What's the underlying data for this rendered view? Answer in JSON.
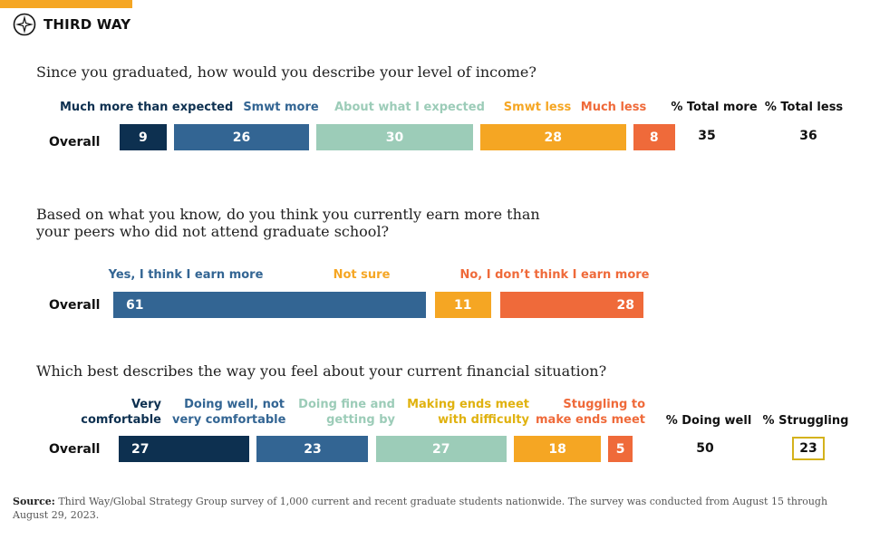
{
  "brand": {
    "name": "THIRD WAY",
    "icon": "compass-icon",
    "accent_color": "#f5a623"
  },
  "chart_data": [
    {
      "type": "bar",
      "subtype": "stacked-horizontal",
      "title": "Since you graduated, how would you describe your level of income?",
      "categories": [
        "Overall"
      ],
      "series": [
        {
          "name": "Much more than expected",
          "values": [
            9
          ],
          "color": "#0d3050"
        },
        {
          "name": "Smwt more",
          "values": [
            26
          ],
          "color": "#336593"
        },
        {
          "name": "About what I expected",
          "values": [
            30
          ],
          "color": "#9cccb8"
        },
        {
          "name": "Smwt less",
          "values": [
            28
          ],
          "color": "#f5a623"
        },
        {
          "name": "Much less",
          "values": [
            8
          ],
          "color": "#ef6a3a"
        }
      ],
      "totals": [
        {
          "label": "% Total more",
          "value": 35
        },
        {
          "label": "% Total less",
          "value": 36
        }
      ]
    },
    {
      "type": "bar",
      "subtype": "stacked-horizontal",
      "title": "Based on what you know, do you think you currently earn more than your peers who did not attend graduate school?",
      "categories": [
        "Overall"
      ],
      "series": [
        {
          "name": "Yes, I think I earn more",
          "values": [
            61
          ],
          "color": "#336593"
        },
        {
          "name": "Not sure",
          "values": [
            11
          ],
          "color": "#f5a623"
        },
        {
          "name": "No, I don’t think I earn more",
          "values": [
            28
          ],
          "color": "#ef6a3a"
        }
      ]
    },
    {
      "type": "bar",
      "subtype": "stacked-horizontal",
      "title": "Which best describes the way you feel about your current financial situation?",
      "categories": [
        "Overall"
      ],
      "series": [
        {
          "name": "Very comfortable",
          "values": [
            27
          ],
          "color": "#0d3050"
        },
        {
          "name": "Doing well, not very comfortable",
          "values": [
            23
          ],
          "color": "#336593"
        },
        {
          "name": "Doing fine and getting by",
          "values": [
            27
          ],
          "color": "#9cccb8"
        },
        {
          "name": "Making ends meet with difficulty",
          "values": [
            18
          ],
          "color": "#f5a623"
        },
        {
          "name": "Stuggling to make ends meet",
          "values": [
            5
          ],
          "color": "#ef6a3a"
        }
      ],
      "totals": [
        {
          "label": "% Doing well",
          "value": 50
        },
        {
          "label": "% Struggling",
          "value": 23
        }
      ]
    }
  ],
  "labels": {
    "q1": {
      "much_more": "Much more than expected",
      "smwt_more": "Smwt more",
      "about": "About what I expected",
      "smwt_less": "Smwt less",
      "much_less": "Much less",
      "total_more": "% Total more",
      "total_less": "% Total less",
      "row": "Overall"
    },
    "q2": {
      "yes_line1": "Yes, I think I earn more",
      "not_sure": "Not sure",
      "no": "No, I don’t think I earn more",
      "row": "Overall"
    },
    "q3": {
      "very_line1": "Very",
      "very_line2": "comfortable",
      "well_line1": "Doing well, not",
      "well_line2": "very comfortable",
      "fine_line1": "Doing fine and",
      "fine_line2": "getting by",
      "making_line1": "Making ends meet",
      "making_line2": "with difficulty",
      "struggling_line1": "Stuggling to",
      "struggling_line2": "make ends meet",
      "doing_well": "% Doing well",
      "struggling": "% Struggling",
      "row": "Overall"
    }
  },
  "q2_title_lines": [
    "Based on what you know, do you think you currently earn more than",
    "your peers who did not attend graduate school?"
  ],
  "source": {
    "label": "Source:",
    "text": " Third Way/Global Strategy Group survey of 1,000 current and recent graduate students nationwide. The survey was conducted from August 15 through August 29, 2023."
  }
}
